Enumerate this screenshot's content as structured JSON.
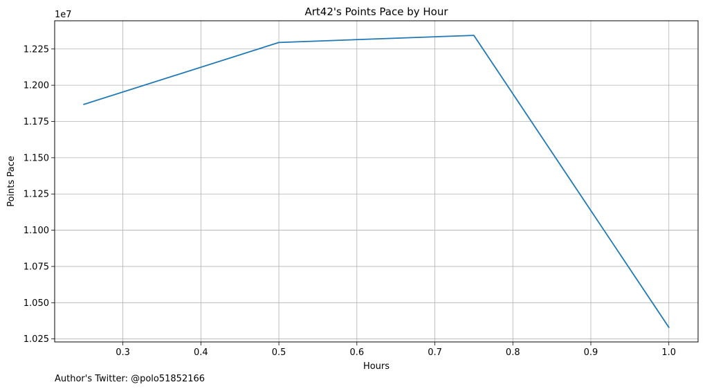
{
  "chart_data": {
    "type": "line",
    "title": "Art42's Points Pace by Hour",
    "xlabel": "Hours",
    "ylabel": "Points Pace",
    "y_scale_label": "1e7",
    "x": [
      0.25,
      0.5,
      0.75,
      1.0
    ],
    "series": [
      {
        "values": [
          11868000,
          12295000,
          12344000,
          10330000
        ],
        "color": "#1f77b4"
      }
    ],
    "xlim": [
      0.2125,
      1.0375
    ],
    "ylim": [
      10229300,
      12444700
    ],
    "x_ticks": [
      0.3,
      0.4,
      0.5,
      0.6,
      0.7,
      0.8,
      0.9,
      1.0
    ],
    "x_tick_labels": [
      "0.3",
      "0.4",
      "0.5",
      "0.6",
      "0.7",
      "0.8",
      "0.9",
      "1.0"
    ],
    "y_ticks": [
      10250000,
      10500000,
      10750000,
      11000000,
      11250000,
      11500000,
      11750000,
      12000000,
      12250000
    ],
    "y_tick_labels": [
      "1.025",
      "1.050",
      "1.075",
      "1.100",
      "1.125",
      "1.150",
      "1.175",
      "1.200",
      "1.225"
    ],
    "grid": true,
    "legend": false
  },
  "footer": {
    "text": "Author's Twitter: @polo51852166"
  }
}
